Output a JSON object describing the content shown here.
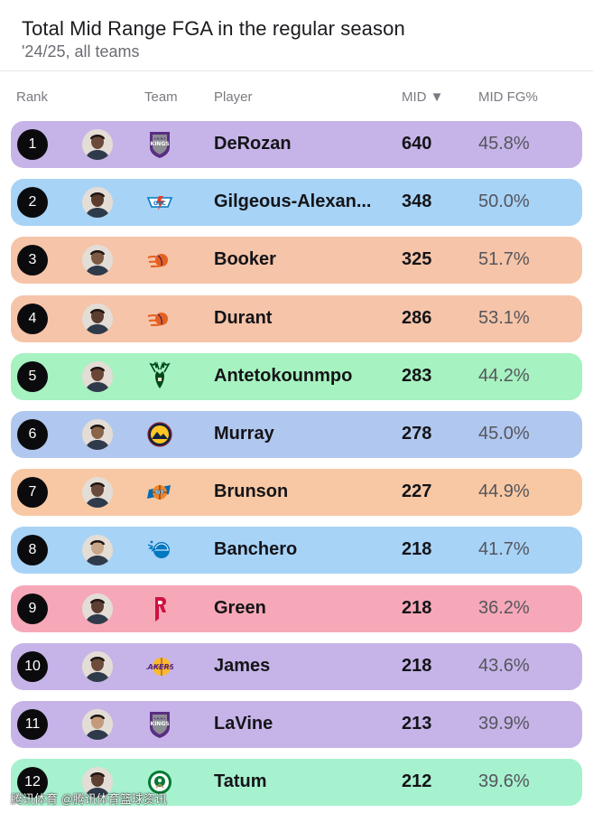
{
  "header": {
    "title": "Total Mid Range FGA in the regular season",
    "subtitle": "'24/25, all teams"
  },
  "columns": {
    "rank": "Rank",
    "team": "Team",
    "player": "Player",
    "mid": "MID ▼",
    "pct": "MID FG%"
  },
  "chart_data": {
    "type": "table",
    "title": "Total Mid Range FGA in the regular season",
    "subtitle": "'24/25, all teams",
    "columns": [
      "Rank",
      "Team",
      "Player",
      "MID",
      "MID FG%"
    ],
    "rows": [
      {
        "rank": "1",
        "team": "Sacramento Kings",
        "team_icon": "kings-logo-icon",
        "player": "DeRozan",
        "mid": "640",
        "pct": "45.8%",
        "color": "#c6b4e8"
      },
      {
        "rank": "2",
        "team": "Oklahoma City Thunder",
        "team_icon": "thunder-logo-icon",
        "player": "Gilgeous-Alexan...",
        "mid": "348",
        "pct": "50.0%",
        "color": "#a7d3f7"
      },
      {
        "rank": "3",
        "team": "Phoenix Suns",
        "team_icon": "suns-logo-icon",
        "player": "Booker",
        "mid": "325",
        "pct": "51.7%",
        "color": "#f6c4a8"
      },
      {
        "rank": "4",
        "team": "Phoenix Suns",
        "team_icon": "suns-logo-icon",
        "player": "Durant",
        "mid": "286",
        "pct": "53.1%",
        "color": "#f6c4a8"
      },
      {
        "rank": "5",
        "team": "Milwaukee Bucks",
        "team_icon": "bucks-logo-icon",
        "player": "Antetokounmpo",
        "mid": "283",
        "pct": "44.2%",
        "color": "#a6f2c0"
      },
      {
        "rank": "6",
        "team": "Denver Nuggets",
        "team_icon": "nuggets-logo-icon",
        "player": "Murray",
        "mid": "278",
        "pct": "45.0%",
        "color": "#b0c7ef"
      },
      {
        "rank": "7",
        "team": "New York Knicks",
        "team_icon": "knicks-logo-icon",
        "player": "Brunson",
        "mid": "227",
        "pct": "44.9%",
        "color": "#f8c8a4"
      },
      {
        "rank": "8",
        "team": "Orlando Magic",
        "team_icon": "magic-logo-icon",
        "player": "Banchero",
        "mid": "218",
        "pct": "41.7%",
        "color": "#a7d3f7"
      },
      {
        "rank": "9",
        "team": "Houston Rockets",
        "team_icon": "rockets-logo-icon",
        "player": "Green",
        "mid": "218",
        "pct": "36.2%",
        "color": "#f6a8b8"
      },
      {
        "rank": "10",
        "team": "Los Angeles Lakers",
        "team_icon": "lakers-logo-icon",
        "player": "James",
        "mid": "218",
        "pct": "43.6%",
        "color": "#c6b4e8"
      },
      {
        "rank": "11",
        "team": "Sacramento Kings",
        "team_icon": "kings-logo-icon",
        "player": "LaVine",
        "mid": "213",
        "pct": "39.9%",
        "color": "#c6b4e8"
      },
      {
        "rank": "12",
        "team": "Boston Celtics",
        "team_icon": "celtics-logo-icon",
        "player": "Tatum",
        "mid": "212",
        "pct": "39.6%",
        "color": "#a6f2cf"
      }
    ]
  },
  "watermark": "腾讯体育 @腾讯体育篮球资讯"
}
